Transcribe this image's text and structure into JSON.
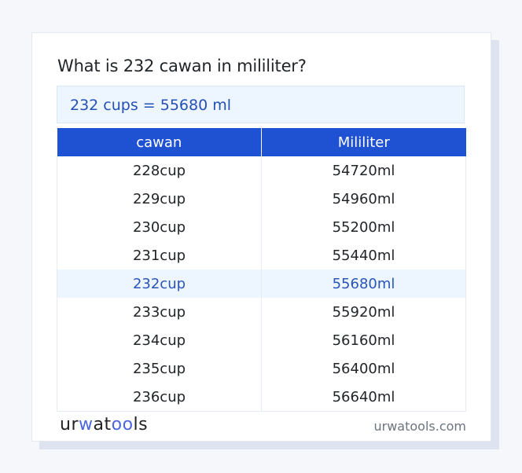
{
  "question": "What is 232 cawan in mililiter?",
  "result": "232 cups = 55680 ml",
  "table": {
    "headers": [
      "cawan",
      "Mililiter"
    ],
    "rows": [
      [
        "228cup",
        "54720ml"
      ],
      [
        "229cup",
        "54960ml"
      ],
      [
        "230cup",
        "55200ml"
      ],
      [
        "231cup",
        "55440ml"
      ],
      [
        "232cup",
        "55680ml"
      ],
      [
        "233cup",
        "55920ml"
      ],
      [
        "234cup",
        "56160ml"
      ],
      [
        "235cup",
        "56400ml"
      ],
      [
        "236cup",
        "56640ml"
      ]
    ],
    "highlighted_index": 4
  },
  "footer": {
    "logo_parts": [
      "ur",
      "w",
      "at",
      "oo",
      "ls"
    ],
    "site": "urwatools.com"
  },
  "colors": {
    "header_bg": "#1f51d3",
    "highlight_bg": "#edf5fe",
    "highlight_text": "#2a55b8"
  }
}
